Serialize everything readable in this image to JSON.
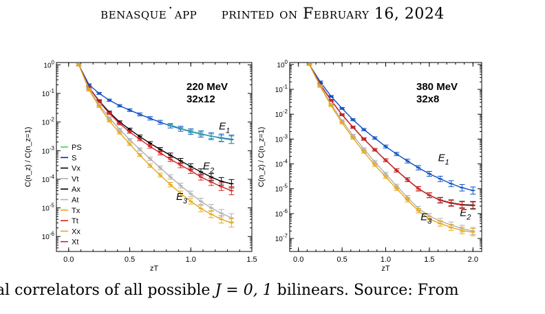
{
  "header": {
    "left": "benasque˙app",
    "right": "printed on February 16, 2024"
  },
  "caption": {
    "pre": "al correlators of all possible ",
    "math": "J = 0, 1",
    "post": " bilinears. Source: From"
  },
  "chart_data": [
    {
      "type": "line",
      "title": "220 MeV",
      "subtitle": "32x12",
      "xlabel": "zT",
      "ylabel": "C(n_z) / C(n_z=1)",
      "ylog": true,
      "xlim": [
        -0.1,
        1.5
      ],
      "ylim": [
        3e-07,
        1.2
      ],
      "xticks": [
        0.0,
        0.5,
        1.0,
        1.5
      ],
      "xtick_labels": [
        "0.0",
        "0.5",
        "1.0",
        "1.5"
      ],
      "ytick_exponents": [
        0,
        -1,
        -2,
        -3,
        -4,
        -5,
        -6
      ],
      "legend": {
        "placement": "left",
        "entries": [
          {
            "name": "PS",
            "color": "#33dd33"
          },
          {
            "name": "S",
            "color": "#0a2aa0"
          },
          {
            "name": "Vx",
            "color": "#000000"
          },
          {
            "name": "Vt",
            "color": "#b0b0b0"
          },
          {
            "name": "Ax",
            "color": "#000000"
          },
          {
            "name": "At",
            "color": "#b0b0b0"
          },
          {
            "name": "Tx",
            "color": "#e6a817"
          },
          {
            "name": "Tt",
            "color": "#d62020"
          },
          {
            "name": "Xx",
            "color": "#e6a817"
          },
          {
            "name": "Xt",
            "color": "#d62020"
          }
        ]
      },
      "annotations": [
        {
          "text": "E",
          "sub": "1",
          "x": 1.23,
          "y": 0.0055
        },
        {
          "text": "E",
          "sub": "2",
          "x": 1.1,
          "y": 0.00022
        },
        {
          "text": "E",
          "sub": "3",
          "x": 0.88,
          "y": 1.9e-05
        }
      ],
      "series": [
        {
          "color": "#0a4fc4",
          "x": [
            0.083,
            0.167,
            0.25,
            0.333,
            0.417,
            0.5,
            0.583,
            0.667,
            0.75,
            0.833,
            0.917,
            1.0,
            1.083,
            1.167,
            1.25,
            1.333
          ],
          "y": [
            1,
            0.2,
            0.1,
            0.058,
            0.037,
            0.026,
            0.0185,
            0.0135,
            0.0098,
            0.0074,
            0.0058,
            0.0046,
            0.0038,
            0.0032,
            0.0028,
            0.0025
          ]
        },
        {
          "color": "#33a0a8",
          "x": [
            0.833,
            0.917,
            1.0,
            1.083,
            1.167,
            1.25,
            1.333
          ],
          "y": [
            0.0078,
            0.006,
            0.0047,
            0.0039,
            0.0032,
            0.0027,
            0.0024
          ]
        },
        {
          "color": "#000000",
          "x": [
            0.083,
            0.167,
            0.25,
            0.333,
            0.417,
            0.5,
            0.583,
            0.667,
            0.75,
            0.833,
            0.917,
            1.0,
            1.083,
            1.167,
            1.25,
            1.333
          ],
          "y": [
            1,
            0.16,
            0.055,
            0.022,
            0.01,
            0.0055,
            0.0031,
            0.0018,
            0.0011,
            0.00069,
            0.00044,
            0.00028,
            0.00018,
            0.00012,
            8.5e-05,
            7e-05
          ]
        },
        {
          "color": "#d62020",
          "x": [
            0.083,
            0.167,
            0.25,
            0.333,
            0.417,
            0.5,
            0.583,
            0.667,
            0.75,
            0.833,
            0.917,
            1.0,
            1.083,
            1.167,
            1.25,
            1.333
          ],
          "y": [
            1,
            0.16,
            0.052,
            0.02,
            0.0088,
            0.0045,
            0.0025,
            0.0014,
            0.00083,
            0.0005,
            0.00031,
            0.0002,
            0.00012,
            8e-05,
            5.5e-05,
            4e-05
          ]
        },
        {
          "color": "#b0b0b0",
          "x": [
            0.083,
            0.167,
            0.25,
            0.333,
            0.417,
            0.5,
            0.583,
            0.667,
            0.75,
            0.833,
            0.917,
            1.0,
            1.083,
            1.167,
            1.25,
            1.333
          ],
          "y": [
            1,
            0.14,
            0.04,
            0.014,
            0.0055,
            0.0024,
            0.0011,
            0.00052,
            0.00025,
            0.00012,
            6e-05,
            3.1e-05,
            1.7e-05,
            1e-05,
            6.5e-06,
            4.5e-06
          ]
        },
        {
          "color": "#e6a817",
          "x": [
            0.083,
            0.167,
            0.25,
            0.333,
            0.417,
            0.5,
            0.583,
            0.667,
            0.75,
            0.833,
            0.917,
            1.0,
            1.083,
            1.167,
            1.25,
            1.333
          ],
          "y": [
            1,
            0.13,
            0.035,
            0.011,
            0.0042,
            0.0017,
            0.0007,
            0.0003,
            0.00014,
            6.5e-05,
            3.2e-05,
            1.7e-05,
            9.5e-06,
            6e-06,
            4e-06,
            3e-06
          ]
        }
      ]
    },
    {
      "type": "line",
      "title": "380 MeV",
      "subtitle": "32x8",
      "xlabel": "zT",
      "ylabel": "C(n_z) / C(n_z=1)",
      "ylog": true,
      "xlim": [
        -0.1,
        2.1
      ],
      "ylim": [
        3e-08,
        1.2
      ],
      "xticks": [
        0.0,
        0.5,
        1.0,
        1.5,
        2.0
      ],
      "xtick_labels": [
        "0.0",
        "0.5",
        "1.0",
        "1.5",
        "2.0"
      ],
      "ytick_exponents": [
        0,
        -1,
        -2,
        -3,
        -4,
        -5,
        -6,
        -7
      ],
      "annotations": [
        {
          "text": "E",
          "sub": "1",
          "x": 1.6,
          "y": 0.00013
        },
        {
          "text": "E",
          "sub": "2",
          "x": 1.85,
          "y": 8e-07
        },
        {
          "text": "E",
          "sub": "3",
          "x": 1.4,
          "y": 5.5e-07
        }
      ],
      "series": [
        {
          "color": "#0a4fc4",
          "x": [
            0.125,
            0.25,
            0.375,
            0.5,
            0.625,
            0.75,
            0.875,
            1.0,
            1.125,
            1.25,
            1.375,
            1.5,
            1.625,
            1.75,
            1.875,
            2.0
          ],
          "y": [
            1,
            0.2,
            0.052,
            0.017,
            0.006,
            0.0024,
            0.0011,
            0.0005,
            0.00025,
            0.00013,
            7e-05,
            4e-05,
            2.5e-05,
            1.6e-05,
            1.1e-05,
            8.5e-06
          ]
        },
        {
          "color": "#000000",
          "x": [
            0.125,
            0.25,
            0.375,
            0.5,
            0.625,
            0.75,
            0.875,
            1.0,
            1.125,
            1.25,
            1.375,
            1.5,
            1.625,
            1.75,
            1.875,
            2.0
          ],
          "y": [
            1,
            0.16,
            0.036,
            0.0095,
            0.003,
            0.001,
            0.00037,
            0.00014,
            5.5e-05,
            2.3e-05,
            1e-05,
            5.5e-06,
            3.5e-06,
            2.7e-06,
            2.3e-06,
            2.2e-06
          ]
        },
        {
          "color": "#d62020",
          "x": [
            0.125,
            0.25,
            0.375,
            0.5,
            0.625,
            0.75,
            0.875,
            1.0,
            1.125,
            1.25,
            1.375,
            1.5,
            1.625,
            1.75,
            1.875,
            2.0
          ],
          "y": [
            1,
            0.16,
            0.036,
            0.0095,
            0.003,
            0.001,
            0.00037,
            0.00014,
            5.5e-05,
            2.3e-05,
            1e-05,
            5.5e-06,
            3.4e-06,
            2.6e-06,
            2.2e-06,
            2.1e-06
          ]
        },
        {
          "color": "#b0b0b0",
          "x": [
            0.125,
            0.25,
            0.375,
            0.5,
            0.625,
            0.75,
            0.875,
            1.0,
            1.125,
            1.25,
            1.375,
            1.5,
            1.625,
            1.75,
            1.875,
            2.0
          ],
          "y": [
            1,
            0.14,
            0.025,
            0.0055,
            0.0014,
            0.0004,
            0.00012,
            4e-05,
            1.3e-05,
            4.5e-06,
            1.6e-06,
            8e-07,
            5e-07,
            3.5e-07,
            2.5e-07,
            2e-07
          ]
        },
        {
          "color": "#e6a817",
          "x": [
            0.125,
            0.25,
            0.375,
            0.5,
            0.625,
            0.75,
            0.875,
            1.0,
            1.125,
            1.25,
            1.375,
            1.5,
            1.625,
            1.75,
            1.875,
            2.0
          ],
          "y": [
            1,
            0.13,
            0.022,
            0.0045,
            0.0011,
            0.0003,
            9e-05,
            3e-05,
            1e-05,
            3.5e-06,
            1.3e-06,
            6e-07,
            4e-07,
            2.8e-07,
            2.1e-07,
            1.8e-07
          ]
        }
      ]
    }
  ]
}
